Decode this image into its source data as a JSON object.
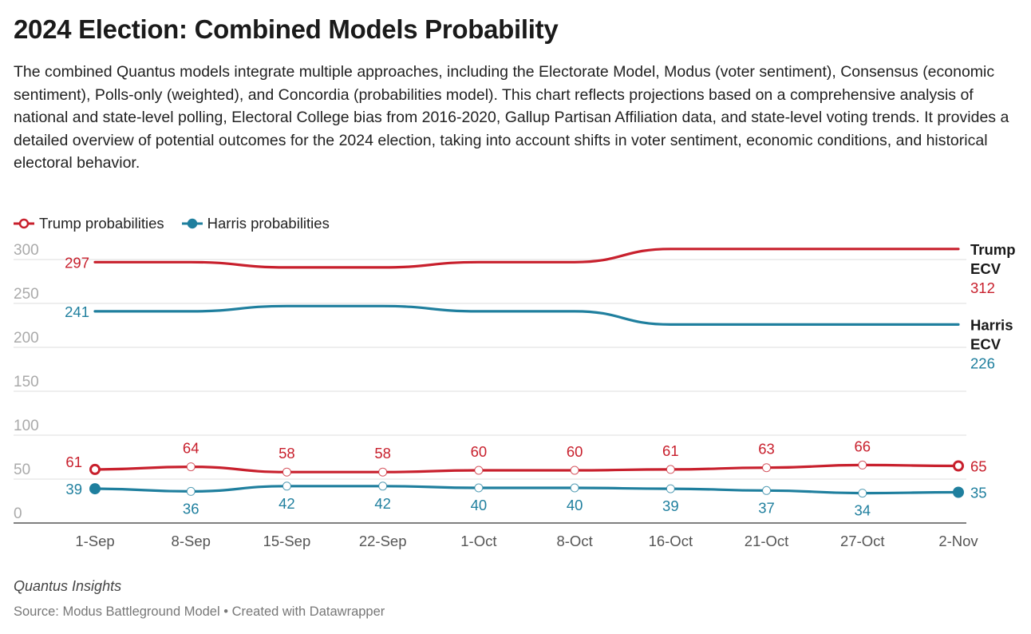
{
  "title": "2024 Election: Combined Models Probability",
  "description": "The combined Quantus models integrate multiple approaches, including the Electorate Model, Modus (voter sentiment), Consensus (economic sentiment), Polls-only (weighted), and Concordia (probabilities model). This chart reflects projections based on a comprehensive analysis of national and state-level polling, Electoral College bias from 2016-2020, Gallup Partisan Affiliation data, and state-level voting trends. It provides a detailed overview of potential outcomes for the 2024 election, taking into account shifts in voter sentiment, economic conditions, and historical electoral behavior.",
  "legend": [
    {
      "label": "Trump probabilities",
      "color": "#c8202d"
    },
    {
      "label": "Harris probabilities",
      "color": "#1f7f9e"
    }
  ],
  "footer": {
    "brand": "Quantus Insights",
    "source": "Source: Modus Battleground Model • Created with Datawrapper"
  },
  "chart_data": {
    "type": "line",
    "categories": [
      "1-Sep",
      "8-Sep",
      "15-Sep",
      "22-Sep",
      "1-Oct",
      "8-Oct",
      "16-Oct",
      "21-Oct",
      "27-Oct",
      "2-Nov"
    ],
    "y_ticks": [
      "0",
      "50",
      "100",
      "150",
      "200",
      "250",
      "300"
    ],
    "ylim": [
      0,
      300
    ],
    "grid": true,
    "legend_position": "top-left",
    "series": [
      {
        "name": "Trump probabilities",
        "color": "#c8202d",
        "values": [
          61,
          64,
          58,
          58,
          60,
          60,
          61,
          63,
          66,
          65
        ],
        "markers": true
      },
      {
        "name": "Harris probabilities",
        "color": "#1f7f9e",
        "values": [
          39,
          36,
          42,
          42,
          40,
          40,
          39,
          37,
          34,
          35
        ],
        "markers": true
      },
      {
        "name": "Trump ECV",
        "color": "#c8202d",
        "values": [
          297,
          297,
          291,
          291,
          297,
          297,
          312,
          312,
          312,
          312
        ],
        "markers": false,
        "end_label": "Trump ECV",
        "end_value": "312",
        "start_value": "297"
      },
      {
        "name": "Harris ECV",
        "color": "#1f7f9e",
        "values": [
          241,
          241,
          247,
          247,
          241,
          241,
          226,
          226,
          226,
          226
        ],
        "markers": false,
        "end_label": "Harris ECV",
        "end_value": "226",
        "start_value": "241"
      }
    ]
  }
}
